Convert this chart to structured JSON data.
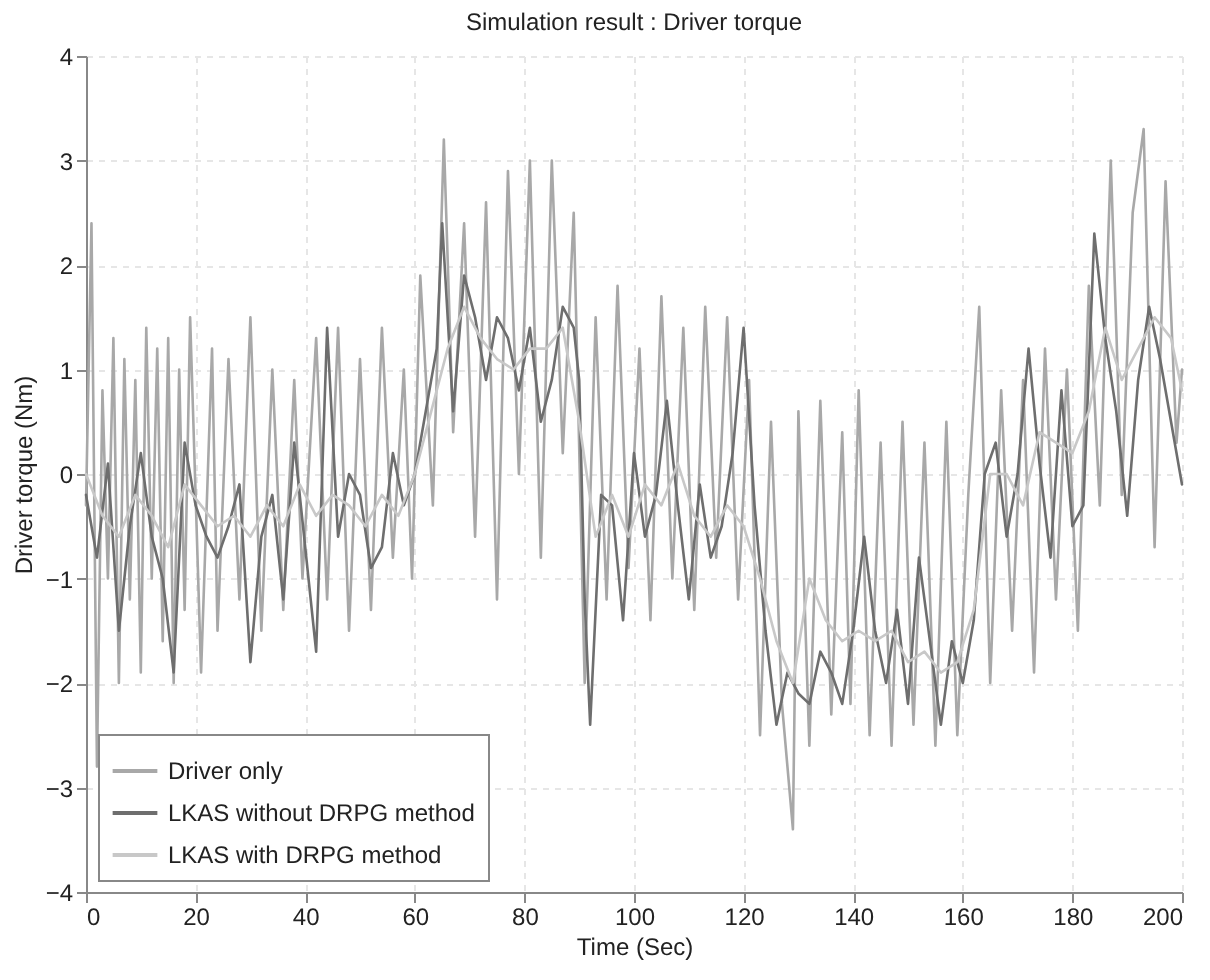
{
  "chart_data": {
    "type": "line",
    "title": "Simulation result : Driver torque",
    "xlabel": "Time (Sec)",
    "ylabel": "Driver torque (Nm)",
    "xlim": [
      0,
      200
    ],
    "xticks": [
      0,
      20,
      40,
      60,
      80,
      100,
      120,
      140,
      160,
      180,
      200
    ],
    "ylim": [
      -4,
      4
    ],
    "yticks": [
      -4,
      -3,
      -2,
      -1,
      0,
      1,
      2,
      3,
      4
    ],
    "grid": true,
    "legend": "bottom left",
    "line_style": "solid",
    "series": [
      {
        "name": "Driver only",
        "color": "#a8a8a8",
        "x": [
          0,
          1,
          2,
          3,
          4,
          5,
          6,
          7,
          8,
          9,
          10,
          11,
          12,
          13,
          14,
          15,
          16,
          17,
          18,
          19,
          21,
          23,
          24,
          26,
          28,
          30,
          32,
          34,
          36,
          38,
          39.5,
          42,
          44,
          46,
          48,
          50,
          52,
          54,
          56,
          58,
          59.5,
          61,
          63.3,
          65.3,
          67,
          69,
          71,
          73,
          75,
          77,
          79,
          81,
          83,
          85,
          87,
          89,
          91,
          93,
          95,
          97,
          99,
          101,
          103,
          105,
          107,
          109,
          111,
          113,
          115,
          117,
          119,
          121,
          123,
          125,
          127,
          129,
          130,
          132,
          134,
          136,
          138,
          139.5,
          141,
          143,
          145,
          147,
          149,
          151,
          153,
          155,
          157,
          159,
          161,
          163,
          165,
          167,
          169,
          171,
          173,
          175,
          177,
          179,
          181,
          183,
          185,
          187,
          189,
          191,
          193,
          195,
          197,
          199,
          200
        ],
        "values": [
          -0.3,
          2.4,
          -2.8,
          0.8,
          -1.0,
          1.3,
          -2.0,
          1.1,
          -1.2,
          0.9,
          -1.9,
          1.4,
          -1.0,
          1.2,
          -1.6,
          1.3,
          -2.0,
          1.0,
          -1.3,
          1.5,
          -1.9,
          1.2,
          -1.5,
          1.1,
          -1.2,
          1.5,
          -1.5,
          1.0,
          -1.3,
          0.9,
          -1.0,
          1.3,
          -1.2,
          1.4,
          -1.5,
          1.1,
          -1.3,
          1.4,
          -0.8,
          1.0,
          -1.0,
          1.9,
          -0.3,
          3.2,
          0.4,
          2.4,
          -0.6,
          2.6,
          -1.2,
          2.9,
          0.0,
          3.0,
          -0.8,
          3.0,
          0.2,
          2.5,
          -2.0,
          1.5,
          -1.2,
          1.8,
          -0.9,
          1.2,
          -1.4,
          1.7,
          -1.0,
          1.4,
          -1.3,
          1.6,
          -0.8,
          1.5,
          -1.2,
          0.9,
          -2.5,
          0.5,
          -2.2,
          -3.4,
          0.6,
          -2.6,
          0.7,
          -2.3,
          0.4,
          -2.2,
          0.8,
          -2.5,
          0.3,
          -2.6,
          0.5,
          -2.4,
          0.3,
          -2.6,
          0.5,
          -2.5,
          -0.2,
          1.6,
          -2.0,
          0.8,
          -1.5,
          0.9,
          -1.9,
          1.2,
          -1.2,
          1.0,
          -1.5,
          1.8,
          -0.3,
          3.0,
          -0.2,
          2.5,
          3.3,
          -0.7,
          2.8,
          0.3,
          1.0
        ]
      },
      {
        "name": "LKAS without DRPG method",
        "color": "#6e6e6e",
        "x": [
          0,
          2,
          4,
          6,
          8,
          10,
          12,
          14,
          16,
          18,
          20,
          22,
          24,
          26,
          28,
          30,
          32,
          34,
          36,
          38,
          40,
          42,
          44,
          46,
          48,
          50,
          52,
          54,
          56,
          58,
          60,
          62,
          64,
          65,
          67,
          69,
          71,
          73,
          75,
          77,
          79,
          81,
          83,
          85,
          87,
          89,
          90,
          91,
          92,
          94,
          96,
          98,
          100,
          102,
          104,
          106,
          108,
          110,
          112,
          114,
          116,
          118,
          120,
          122,
          124,
          126,
          128,
          130,
          132,
          134,
          136,
          138,
          140,
          142,
          144,
          146,
          148,
          150,
          152,
          154,
          156,
          158,
          160,
          162,
          164,
          166,
          168,
          170,
          172,
          174,
          176,
          178,
          180,
          182,
          184,
          186,
          188,
          190,
          192,
          194,
          196,
          198,
          200
        ],
        "values": [
          -0.2,
          -0.8,
          0.1,
          -1.5,
          -0.5,
          0.2,
          -0.6,
          -1.0,
          -1.9,
          0.3,
          -0.3,
          -0.6,
          -0.8,
          -0.5,
          -0.1,
          -1.8,
          -0.6,
          -0.2,
          -1.2,
          0.3,
          -0.7,
          -1.7,
          1.4,
          -0.6,
          0.0,
          -0.2,
          -0.9,
          -0.7,
          0.2,
          -0.3,
          0.0,
          0.6,
          1.2,
          2.4,
          0.6,
          1.9,
          1.5,
          0.9,
          1.5,
          1.3,
          0.8,
          1.4,
          0.5,
          0.9,
          1.6,
          1.4,
          0.9,
          -1.2,
          -2.4,
          -0.2,
          -0.3,
          -1.4,
          0.2,
          -0.6,
          -0.2,
          0.7,
          -0.3,
          -1.2,
          -0.1,
          -0.8,
          -0.5,
          0.2,
          1.4,
          -0.3,
          -1.5,
          -2.4,
          -1.9,
          -2.1,
          -2.2,
          -1.7,
          -1.9,
          -2.2,
          -1.5,
          -0.6,
          -1.5,
          -2.0,
          -1.3,
          -2.2,
          -0.8,
          -1.6,
          -2.4,
          -1.6,
          -2.0,
          -1.4,
          0.0,
          0.3,
          -0.6,
          0.0,
          1.2,
          0.1,
          -0.8,
          0.8,
          -0.5,
          -0.3,
          2.3,
          1.3,
          0.6,
          -0.4,
          0.9,
          1.6,
          1.1,
          0.5,
          -0.1
        ]
      },
      {
        "name": "LKAS with DRPG method",
        "color": "#c8c8c8",
        "x": [
          0,
          3,
          6,
          9,
          12,
          15,
          18,
          21,
          24,
          27,
          30,
          33,
          36,
          39,
          42,
          45,
          48,
          51,
          54,
          57,
          60,
          63,
          66,
          69,
          72,
          75,
          78,
          81,
          84,
          87,
          90,
          93,
          96,
          99,
          102,
          105,
          108,
          111,
          114,
          117,
          120,
          123,
          126,
          129,
          132,
          135,
          138,
          141,
          144,
          147,
          150,
          153,
          156,
          159,
          162,
          165,
          168,
          171,
          174,
          177,
          180,
          183,
          186,
          189,
          192,
          195,
          198,
          200
        ],
        "values": [
          0.0,
          -0.4,
          -0.6,
          -0.2,
          -0.4,
          -0.7,
          -0.1,
          -0.3,
          -0.5,
          -0.4,
          -0.6,
          -0.3,
          -0.5,
          -0.1,
          -0.4,
          -0.2,
          -0.3,
          -0.5,
          -0.2,
          -0.4,
          0.0,
          0.6,
          1.2,
          1.6,
          1.3,
          1.1,
          1.0,
          1.2,
          1.2,
          1.4,
          0.5,
          -0.6,
          -0.2,
          -0.6,
          -0.1,
          -0.3,
          0.1,
          -0.4,
          -0.6,
          -0.3,
          -0.5,
          -1.0,
          -1.6,
          -2.0,
          -1.0,
          -1.4,
          -1.6,
          -1.5,
          -1.6,
          -1.5,
          -1.8,
          -1.7,
          -1.9,
          -1.8,
          -1.3,
          0.0,
          0.0,
          -0.3,
          0.4,
          0.3,
          0.2,
          0.6,
          1.4,
          0.9,
          1.2,
          1.5,
          1.3,
          0.8
        ]
      }
    ]
  }
}
